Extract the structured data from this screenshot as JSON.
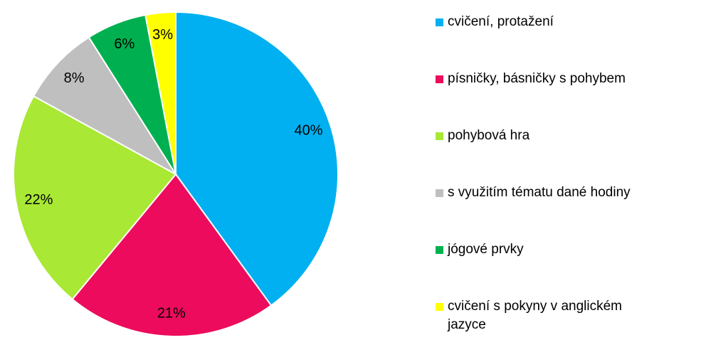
{
  "chart_data": {
    "type": "pie",
    "categories": [
      "cvičení, protažení",
      "písničky, básničky s pohybem",
      "pohybová hra",
      "s využitím tématu dané hodiny",
      "jógové prvky",
      "cvičení s pokyny v anglickém jazyce"
    ],
    "values": [
      40,
      21,
      22,
      8,
      6,
      3
    ],
    "value_labels": [
      "40%",
      "21%",
      "22%",
      "8%",
      "6%",
      "3%"
    ],
    "colors": [
      "#00b0f0",
      "#ec0b5c",
      "#a9e834",
      "#bfbfbf",
      "#00b050",
      "#ffff00"
    ],
    "legend": "right"
  }
}
